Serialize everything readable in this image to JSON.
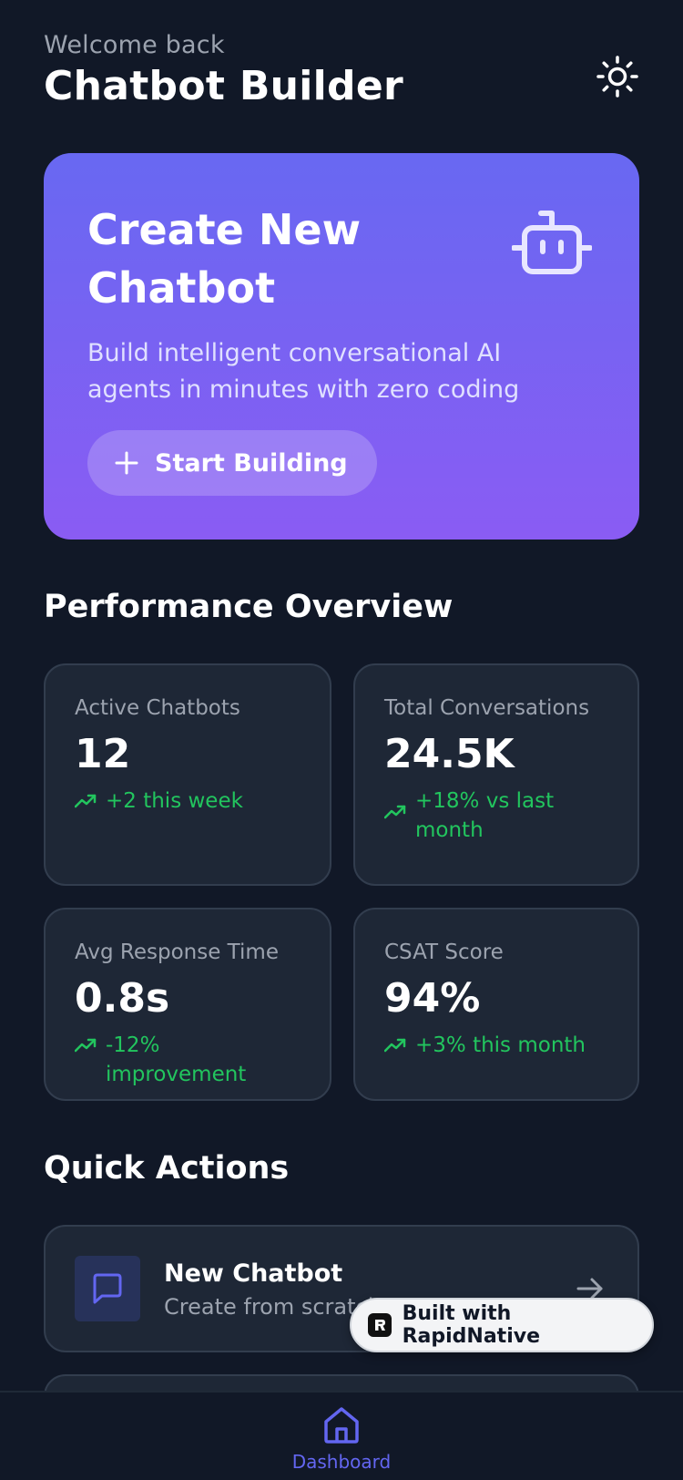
{
  "header": {
    "welcome": "Welcome back",
    "title": "Chatbot Builder",
    "theme_icon": "sun-icon"
  },
  "hero": {
    "title": "Create New Chatbot",
    "description": "Build intelligent conversational AI agents in minutes with zero coding",
    "button_label": "Start Building",
    "icon": "bot-icon",
    "gradient": [
      "#6868f2",
      "#8a5cf3"
    ]
  },
  "performance": {
    "title": "Performance Overview",
    "cards": [
      {
        "label": "Active Chatbots",
        "value": "12",
        "trend": "+2 this week"
      },
      {
        "label": "Total Conversations",
        "value": "24.5K",
        "trend": "+18% vs last month"
      },
      {
        "label": "Avg Response Time",
        "value": "0.8s",
        "trend": "-12% improvement"
      },
      {
        "label": "CSAT Score",
        "value": "94%",
        "trend": "+3% this month"
      }
    ],
    "trend_color": "#22c55e"
  },
  "quick_actions": {
    "title": "Quick Actions",
    "items": [
      {
        "title": "New Chatbot",
        "subtitle": "Create from scratch",
        "icon": "message-square-icon"
      }
    ]
  },
  "badge": {
    "label": "Built with RapidNative"
  },
  "bottom_nav": {
    "items": [
      {
        "label": "Dashboard",
        "icon": "home-icon",
        "active": true
      }
    ],
    "accent": "#6366f1"
  }
}
